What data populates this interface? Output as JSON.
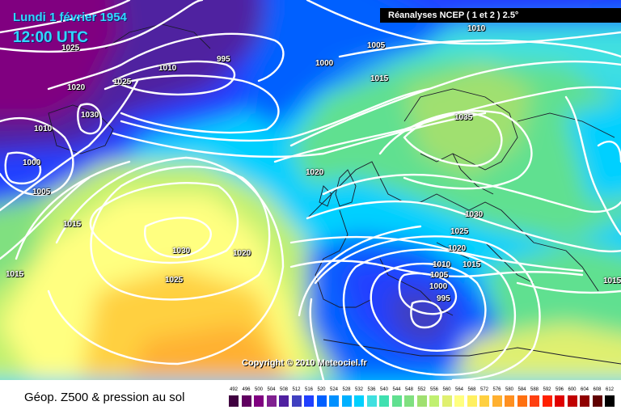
{
  "header": {
    "date": "Lundi 1 février 1954",
    "time": "12:00 UTC",
    "reanalysis": "Réanalyses NCEP ( 1 et 2 ) 2.5°"
  },
  "copyright": "Copyright © 2010 Meteociel.fr",
  "footer": {
    "title": "Géop. Z500 & pression au sol"
  },
  "isobar_labels": [
    "1025",
    "1020",
    "1030",
    "1025",
    "1010",
    "995",
    "1010",
    "1000",
    "1005",
    "1010",
    "1000",
    "1005",
    "1015",
    "1015",
    "1035",
    "1020",
    "1030",
    "1020",
    "1025",
    "1015",
    "1030",
    "1025",
    "1020",
    "1010",
    "1005",
    "1000",
    "995",
    "1015",
    "1015"
  ],
  "legend": {
    "values": [
      "492",
      "496",
      "500",
      "504",
      "508",
      "512",
      "516",
      "520",
      "524",
      "528",
      "532",
      "536",
      "540",
      "544",
      "548",
      "552",
      "556",
      "560",
      "564",
      "568",
      "572",
      "576",
      "580",
      "584",
      "588",
      "592",
      "596",
      "600",
      "604",
      "608",
      "612"
    ],
    "colors": [
      "#400040",
      "#600060",
      "#800080",
      "#802090",
      "#5020a0",
      "#4040c0",
      "#2040ff",
      "#0060ff",
      "#0090ff",
      "#00b0ff",
      "#00d0ff",
      "#40e0e0",
      "#40e0b0",
      "#60e090",
      "#80e080",
      "#a0e070",
      "#c0f070",
      "#e0f070",
      "#ffff80",
      "#fff060",
      "#ffd040",
      "#ffb030",
      "#ff9020",
      "#ff7010",
      "#ff4010",
      "#ff2000",
      "#e00000",
      "#c00000",
      "#900000",
      "#600000",
      "#000000"
    ]
  }
}
